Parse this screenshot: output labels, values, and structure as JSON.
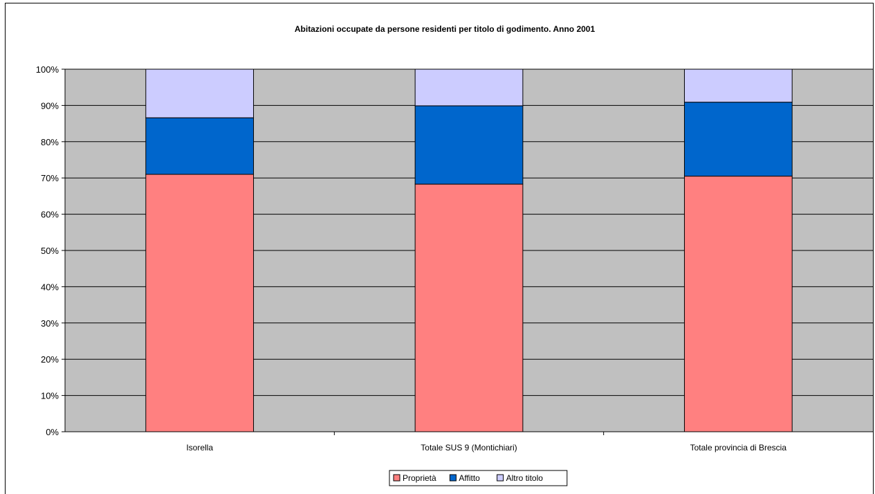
{
  "chart_data": {
    "type": "bar",
    "stacked": true,
    "percent_stacked": true,
    "title": "Abitazioni occupate da persone residenti per titolo di godimento. Anno 2001",
    "categories": [
      "Isorella",
      "Totale SUS 9 (Montichiari)",
      "Totale provincia di Brescia"
    ],
    "series": [
      {
        "name": "Proprietà",
        "values": [
          71.0,
          68.3,
          70.5
        ]
      },
      {
        "name": "Affitto",
        "values": [
          15.6,
          21.6,
          20.4
        ]
      },
      {
        "name": "Altro titolo",
        "values": [
          13.4,
          10.1,
          9.1
        ]
      }
    ],
    "y_ticks": [
      "0%",
      "10%",
      "20%",
      "30%",
      "40%",
      "50%",
      "60%",
      "70%",
      "80%",
      "90%",
      "100%"
    ],
    "ylim": [
      0,
      100
    ],
    "grid": true,
    "legend_position": "bottom",
    "colors": {
      "Proprietà": "#FF8080",
      "Affitto": "#0066CC",
      "Altro titolo": "#CCCCFF",
      "plot_background": "#C0C0C0"
    }
  }
}
